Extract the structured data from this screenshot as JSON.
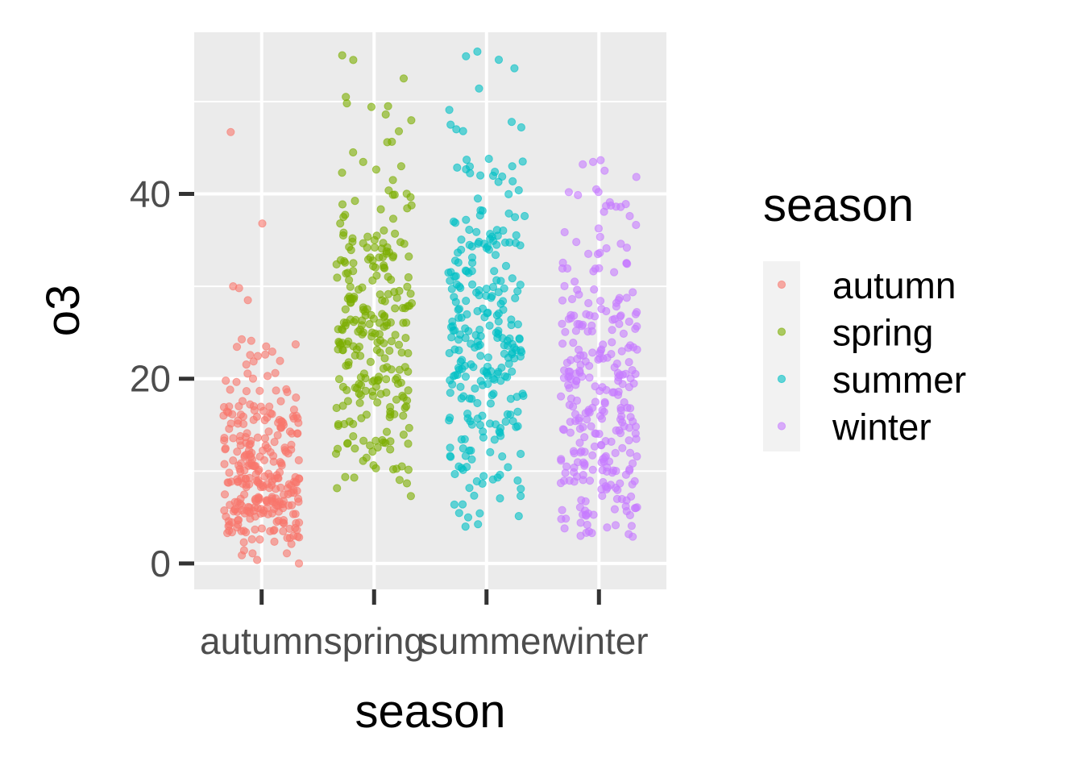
{
  "chart_data": {
    "type": "scatter",
    "jitter": true,
    "xlabel": "season",
    "ylabel": "o3",
    "categories": [
      "autumn",
      "spring",
      "summer",
      "winter"
    ],
    "y_ticks": [
      0,
      20,
      40
    ],
    "ylim": [
      -2.8,
      57.5
    ],
    "grid": true,
    "legend": {
      "title": "season",
      "position": "right"
    },
    "colors": {
      "autumn": "#F8766D",
      "spring": "#7CAE00",
      "summer": "#00BFC4",
      "winter": "#C77CFF"
    },
    "panel_background": "#EBEBEB",
    "series": [
      {
        "name": "autumn",
        "n": 300,
        "min": 0.0,
        "q1": 6.0,
        "median": 9.0,
        "q3": 14.0,
        "max": 46.7,
        "outliers": [
          46.7,
          36.8,
          30.0,
          29.8,
          28.5
        ]
      },
      {
        "name": "spring",
        "n": 270,
        "min": 7.3,
        "q1": 19.0,
        "median": 25.0,
        "q3": 31.0,
        "max": 55.0,
        "outliers": [
          55.0,
          54.5,
          52.5,
          50.5,
          49.8,
          49.5,
          48.6,
          45.6,
          44.5,
          43.0,
          42.3
        ]
      },
      {
        "name": "summer",
        "n": 280,
        "min": 4.0,
        "q1": 15.0,
        "median": 24.0,
        "q3": 31.0,
        "max": 54.9,
        "outliers": [
          54.9,
          53.6,
          49.1,
          47.8,
          47.5,
          47.2,
          46.8,
          43.8,
          43.5,
          43.0,
          42.0
        ]
      },
      {
        "name": "winter",
        "n": 300,
        "min": 2.9,
        "q1": 9.0,
        "median": 16.0,
        "q3": 24.0,
        "max": 40.2,
        "outliers": [
          40.2,
          39.1,
          38.9,
          38.6,
          37.6
        ]
      }
    ]
  }
}
